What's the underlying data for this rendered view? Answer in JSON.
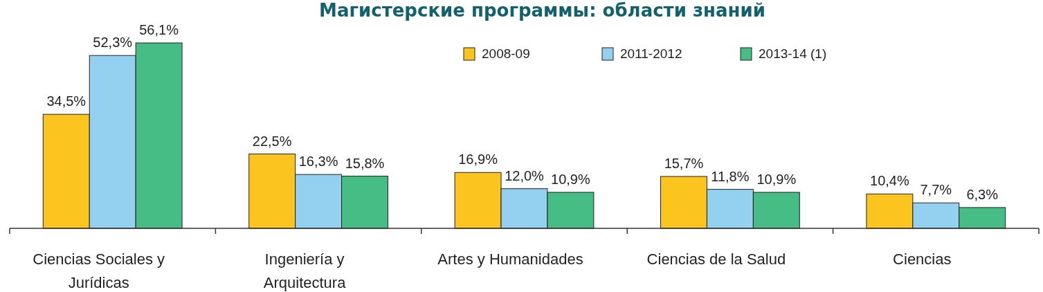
{
  "chart_data": {
    "type": "bar",
    "title": "Магистерские программы: области знаний",
    "categories": [
      "Ciencias Sociales y Jurídicas",
      "Ingeniería y Arquitectura",
      "Artes y Humanidades",
      "Ciencias de la Salud",
      "Ciencias"
    ],
    "series": [
      {
        "name": "2008-09",
        "color": "#fbc41f",
        "values": [
          34.5,
          22.5,
          16.9,
          15.7,
          10.4
        ],
        "value_labels": [
          "34,5%",
          "22,5%",
          "16,9%",
          "15,7%",
          "10,4%"
        ]
      },
      {
        "name": "2011-2012",
        "color": "#94d0f0",
        "values": [
          52.3,
          16.3,
          12.0,
          11.8,
          7.7
        ],
        "value_labels": [
          "52,3%",
          "16,3%",
          "12,0%",
          "11,8%",
          "7,7%"
        ]
      },
      {
        "name": "2013-14 (1)",
        "color": "#45bd85",
        "values": [
          56.1,
          15.8,
          10.9,
          10.9,
          6.3
        ],
        "value_labels": [
          "56,1%",
          "15,8%",
          "10,9%",
          "10,9%",
          "6,3%"
        ]
      }
    ],
    "legend": "top right",
    "grid": false
  }
}
